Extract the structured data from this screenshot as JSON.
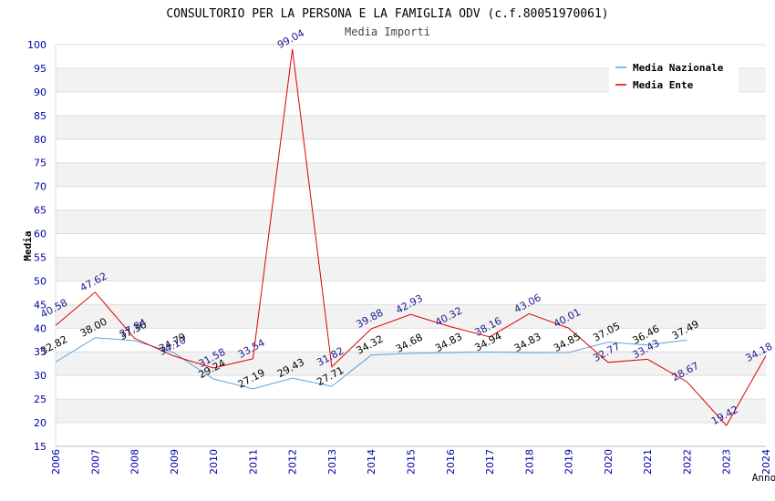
{
  "chart_data": {
    "type": "line",
    "title": "CONSULTORIO PER LA PERSONA E LA FAMIGLIA ODV (c.f.80051970061)",
    "subtitle": "Media Importi",
    "xlabel": "Anno",
    "ylabel": "Media",
    "ylim": [
      15,
      100
    ],
    "ytick_step": 5,
    "grid": true,
    "legend_position": "top-right",
    "x": [
      "2006",
      "2007",
      "2008",
      "2009",
      "2010",
      "2011",
      "2012",
      "2013",
      "2014",
      "2015",
      "2016",
      "2017",
      "2018",
      "2019",
      "2020",
      "2021",
      "2022",
      "2023",
      "2024"
    ],
    "series": [
      {
        "name": "Media Nazionale",
        "color": "#5aa5e0",
        "label_color": "#000000",
        "values": [
          32.82,
          38.0,
          37.36,
          34.79,
          29.24,
          27.19,
          29.43,
          27.71,
          34.32,
          34.68,
          34.83,
          34.94,
          34.83,
          34.85,
          37.05,
          36.46,
          37.49,
          null,
          null
        ],
        "labels": [
          "32.82",
          "38.00",
          "37.36",
          "34.79",
          "29.24",
          "27.19",
          "29.43",
          "27.71",
          "34.32",
          "34.68",
          "34.83",
          "34.94",
          "34.83",
          "34.85",
          "37.05",
          "36.46",
          "37.49",
          "",
          ""
        ]
      },
      {
        "name": "Media Ente",
        "color": "#dd0000",
        "label_color": "#1a1a8c",
        "values": [
          40.58,
          47.62,
          37.84,
          34.1,
          31.58,
          33.54,
          99.04,
          31.82,
          39.88,
          42.93,
          40.32,
          38.16,
          43.06,
          40.01,
          32.77,
          33.43,
          28.67,
          19.42,
          34.18
        ],
        "labels": [
          "40.58",
          "47.62",
          "37.84",
          "34.10",
          "31.58",
          "33.54",
          "99.04",
          "31.82",
          "39.88",
          "42.93",
          "40.32",
          "38.16",
          "43.06",
          "40.01",
          "32.77",
          "33.43",
          "28.67",
          "19.42",
          "34.18"
        ]
      }
    ]
  },
  "colors": {
    "band": "#f2f2f2",
    "gridline": "#dddddd",
    "axis_text": "#0000aa"
  }
}
